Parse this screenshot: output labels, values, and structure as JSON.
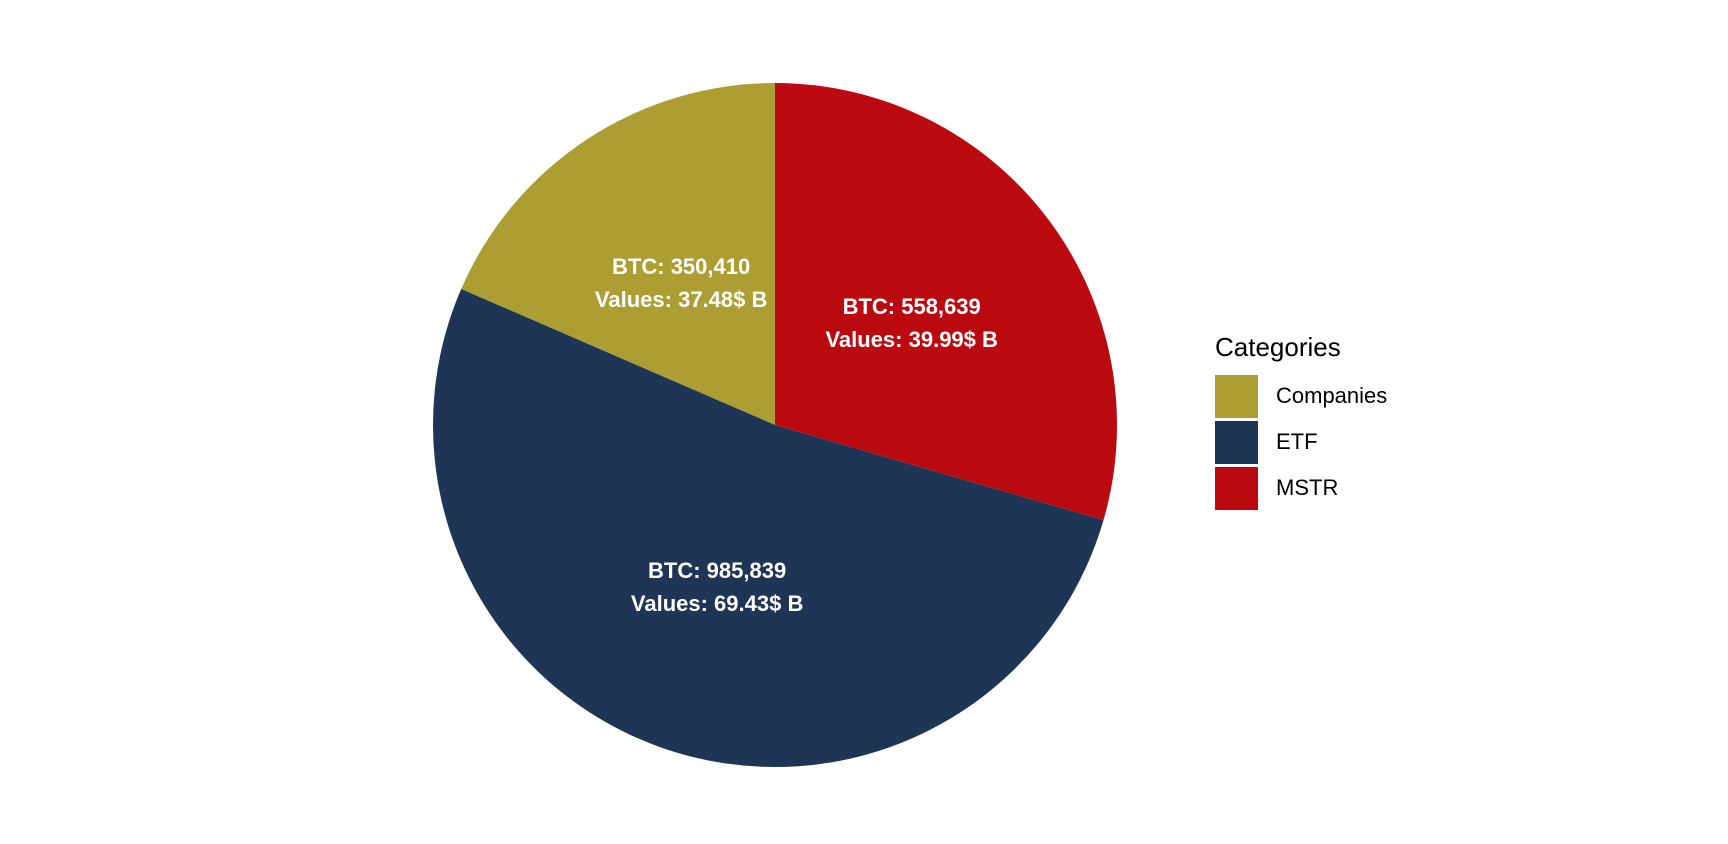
{
  "chart_data": {
    "type": "pie",
    "title": "",
    "categories": [
      "Companies",
      "ETF",
      "MSTR"
    ],
    "values": [
      350410,
      985839,
      558639
    ],
    "labels": [
      {
        "line1": "BTC: 350,410",
        "line2": "Values: 37.48$ B"
      },
      {
        "line1": "BTC: 985,839",
        "line2": "Values: 69.43$ B"
      },
      {
        "line1": "BTC: 558,639",
        "line2": "Values: 39.99$ B"
      }
    ],
    "colors": [
      "#AD9E33",
      "#1F3556",
      "#BA0A10"
    ],
    "start": "12 o'clock",
    "direction": "counter-clockwise",
    "legend": {
      "title": "Categories",
      "placement": "right",
      "items": [
        "Companies",
        "ETF",
        "MSTR"
      ]
    }
  }
}
